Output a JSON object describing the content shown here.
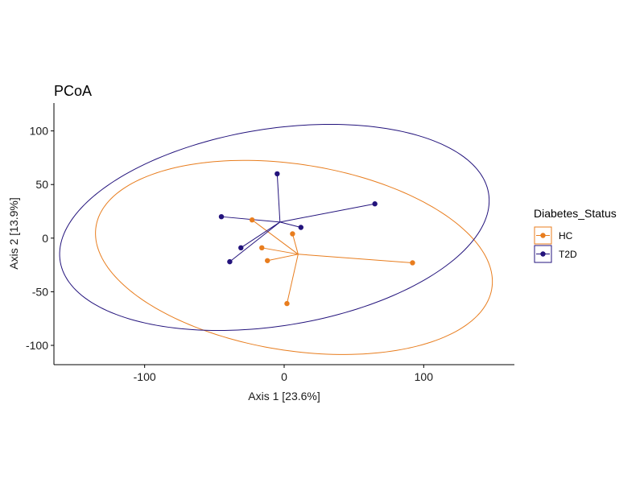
{
  "chart_data": {
    "type": "scatter",
    "title": "PCoA",
    "xlabel": "Axis 1 [23.6%]",
    "ylabel": "Axis 2 [13.9%]",
    "xlim": [
      -165,
      165
    ],
    "ylim": [
      -118,
      126
    ],
    "xticks": [
      -100,
      0,
      100
    ],
    "yticks": [
      -100,
      -50,
      0,
      50,
      100
    ],
    "grid": false,
    "legend": {
      "title": "Diabetes_Status",
      "placement": "right"
    },
    "series": [
      {
        "name": "HC",
        "color": "#E87D1E",
        "centroid": [
          10,
          -15
        ],
        "ellipse": {
          "center": [
            7,
            -18
          ],
          "rx": 145,
          "ry": 86,
          "angle_deg": -14
        },
        "points": [
          [
            -23,
            17
          ],
          [
            -16,
            -9
          ],
          [
            -12,
            -21
          ],
          [
            6,
            4
          ],
          [
            2,
            -61
          ],
          [
            92,
            -23
          ]
        ]
      },
      {
        "name": "T2D",
        "color": "#23137C",
        "centroid": [
          -3,
          15
        ],
        "ellipse": {
          "center": [
            -7,
            10
          ],
          "rx": 157,
          "ry": 91,
          "angle_deg": 14
        },
        "points": [
          [
            -45,
            20
          ],
          [
            -5,
            60
          ],
          [
            65,
            32
          ],
          [
            12,
            10
          ],
          [
            -31,
            -9
          ],
          [
            -39,
            -22
          ]
        ]
      }
    ]
  }
}
